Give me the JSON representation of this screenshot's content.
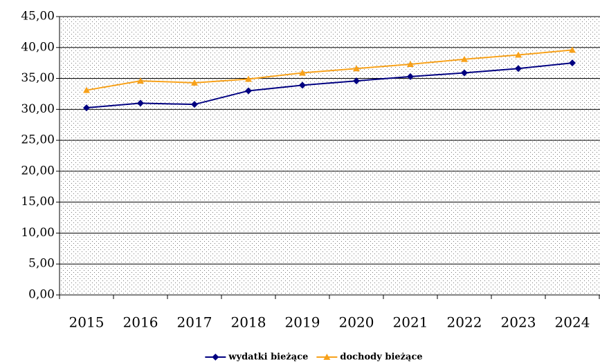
{
  "chart_data": {
    "type": "line",
    "categories": [
      "2015",
      "2016",
      "2017",
      "2018",
      "2019",
      "2020",
      "2021",
      "2022",
      "2023",
      "2024"
    ],
    "series": [
      {
        "name": "wydatki bieżące",
        "color": "#000080",
        "marker": "diamond",
        "values": [
          30.25,
          31.0,
          30.8,
          33.0,
          33.9,
          34.6,
          35.3,
          35.9,
          36.6,
          37.5
        ]
      },
      {
        "name": "dochody bieżące",
        "color": "#f7a11a",
        "marker": "triangle",
        "values": [
          33.1,
          34.6,
          34.3,
          34.9,
          35.9,
          36.6,
          37.3,
          38.1,
          38.8,
          39.6
        ]
      }
    ],
    "ylim": [
      0,
      45
    ],
    "yticks": [
      {
        "value": 0,
        "label": "0,00"
      },
      {
        "value": 5,
        "label": "5,00"
      },
      {
        "value": 10,
        "label": "10,00"
      },
      {
        "value": 15,
        "label": "15,00"
      },
      {
        "value": 20,
        "label": "20,00"
      },
      {
        "value": 25,
        "label": "25,00"
      },
      {
        "value": 30,
        "label": "30,00"
      },
      {
        "value": 35,
        "label": "35,00"
      },
      {
        "value": 40,
        "label": "40,00"
      },
      {
        "value": 45,
        "label": "45,00"
      }
    ],
    "grid": true,
    "legend": "bottom"
  }
}
